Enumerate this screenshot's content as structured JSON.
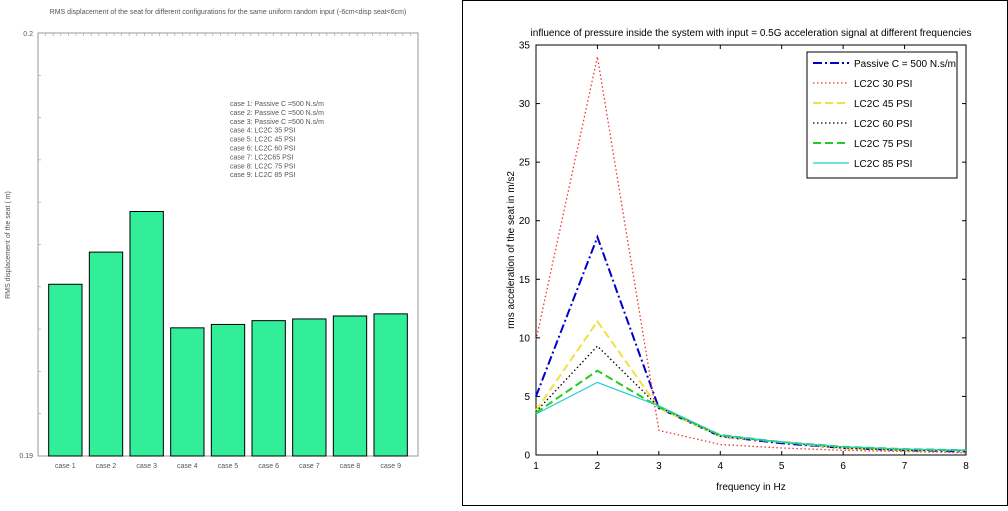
{
  "chart_data": [
    {
      "type": "bar",
      "title": "RMS displacement of the seat for different configurations for the same  uniform random input (-6cm<disp seat<6cm)",
      "xlabel": "",
      "ylabel": "RMS displacement of the seat ( m)",
      "categories": [
        "case 1",
        "case 2",
        "case 3",
        "case 4",
        "case 5",
        "case 6",
        "case 7",
        "case 8",
        "case 9"
      ],
      "values": [
        0.19406,
        0.19482,
        0.19578,
        0.19303,
        0.19311,
        0.1932,
        0.19324,
        0.19331,
        0.19336
      ],
      "ylim": [
        0.19,
        0.2
      ],
      "ytick_labels": [
        "0.2",
        "0.19"
      ],
      "bar_color": "#33ee99",
      "annotations": [
        "case 1: Passive C =500 N.s/m",
        "case 2: Passive C =500 N.s/m",
        "case 3: Passive C =500 N.s/m",
        "case 4: LC2C 35 PSI",
        "case 5: LC2C 45 PSI",
        "case 6: LC2C 60 PSI",
        "case 7: LC2C65 PSI",
        "case 8: LC2C 75 PSI",
        "case 9: LC2C 85 PSI"
      ],
      "grid": false
    },
    {
      "type": "line",
      "title": "influence of pressure inside the system with input = 0.5G acceleration signal at different frequencies",
      "xlabel": "frequency in Hz",
      "ylabel": "rms acceleration of the seat in m/s2",
      "xlim": [
        1,
        8
      ],
      "ylim": [
        0,
        35
      ],
      "xticks": [
        1,
        2,
        3,
        4,
        5,
        6,
        7,
        8
      ],
      "yticks": [
        0,
        5,
        10,
        15,
        20,
        25,
        30,
        35
      ],
      "x": [
        1,
        2,
        3,
        4,
        5,
        6,
        7,
        8
      ],
      "legend_position": "top-right",
      "grid": false,
      "series": [
        {
          "name": "Passive C = 500 N.s/m",
          "color": "#0000cc",
          "dash": "dashdot",
          "values": [
            5.0,
            18.6,
            4.0,
            1.6,
            1.0,
            0.6,
            0.4,
            0.3
          ]
        },
        {
          "name": "LC2C 30 PSI",
          "color": "#ee3333",
          "dash": "dotted",
          "values": [
            9.8,
            34.0,
            2.1,
            0.9,
            0.6,
            0.4,
            0.3,
            0.2
          ]
        },
        {
          "name": "LC2C 45 PSI",
          "color": "#f0e040",
          "dash": "dashed",
          "values": [
            3.8,
            11.4,
            4.0,
            1.6,
            1.1,
            0.6,
            0.4,
            0.4
          ]
        },
        {
          "name": "LC2C 60 PSI",
          "color": "#000000",
          "dash": "dotted",
          "values": [
            3.7,
            9.3,
            4.1,
            1.6,
            1.1,
            0.6,
            0.4,
            0.4
          ]
        },
        {
          "name": "LC2C 75 PSI",
          "color": "#22cc22",
          "dash": "dashed",
          "values": [
            3.6,
            7.2,
            4.1,
            1.7,
            1.1,
            0.7,
            0.5,
            0.4
          ]
        },
        {
          "name": "LC2C 85 PSI",
          "color": "#22cccc",
          "dash": "solid",
          "values": [
            3.5,
            6.2,
            4.2,
            1.7,
            1.1,
            0.7,
            0.5,
            0.4
          ]
        }
      ]
    }
  ]
}
